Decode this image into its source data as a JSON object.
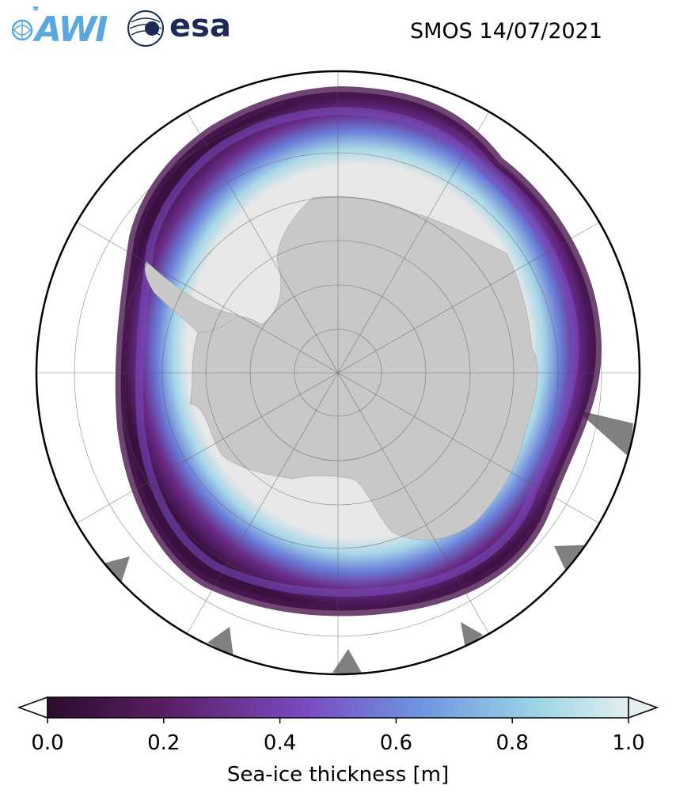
{
  "header": {
    "logo_awi": "AWI",
    "logo_esa": "esa",
    "title": "SMOS 14/07/2021"
  },
  "map": {
    "projection": "south-polar-stereographic",
    "colormap": "dark purple to light cyan",
    "land_color": "#c8c8c8",
    "thick_ice_color": "#e8e8e8",
    "no_data_color": "#808080"
  },
  "colorbar": {
    "label": "Sea-ice thickness [m]",
    "ticks": [
      "0.0",
      "0.2",
      "0.4",
      "0.6",
      "0.8",
      "1.0"
    ],
    "min": 0.0,
    "max": 1.0,
    "extend": "both",
    "colors": [
      "#2a0c2e",
      "#5a1d62",
      "#7a4cc4",
      "#6e98e0",
      "#a0d6e6",
      "#e5efef"
    ]
  }
}
